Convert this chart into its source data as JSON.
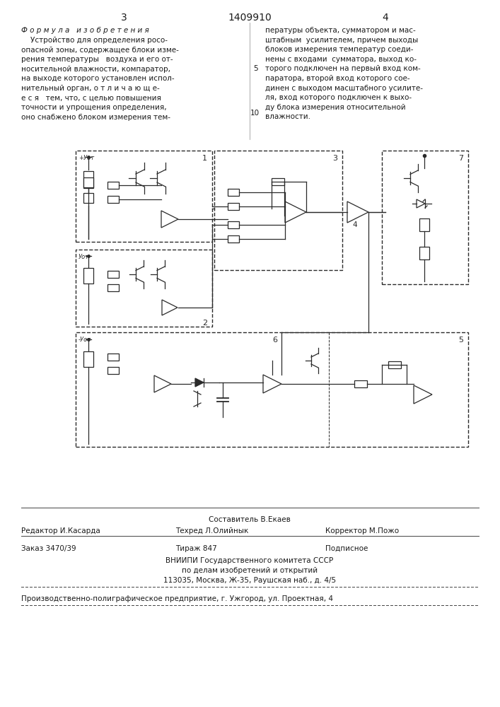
{
  "page_num_left": "3",
  "page_num_center": "1409910",
  "page_num_right": "4",
  "col1_header": "Ф о р м у л а   и з о б р е т е н и я",
  "col1_text": "    Устройство для определения росо-\nопасной зоны, содержащее блоки изме-\nрения температуры   воздуха и его от-\nносительной влажности, компаратор,\nна выходе которого установлен испол-\nнительный орган, о т л и ч а ю щ е-\nе с я   тем, что, с целью повышения\nточности и упрощения определения,\nоно снабжено блоком измерения тем-",
  "col2_line_num": "5",
  "col2_line_num2": "10",
  "col2_text": "пературы объекта, сумматором и мас-\nштабным  усилителем, причем выходы\nблоков измерения температур соеди-\nнены с входами  сумматора, выход ко-\nторого подключен на первый вход ком-\nпаратора, второй вход которого сое-\nдинен с выходом масштабного усилите-\nля, вход которого подключен к выхо-\nду блока измерения относительной\nвлажности.",
  "footer_composer": "Составитель В.Екаев",
  "footer_editor": "Редактор И.Касарда",
  "footer_techred": "Техред Л.Олийнык",
  "footer_corrector": "Корректор М.Пожо",
  "footer_order": "Заказ 3470/39",
  "footer_tirazh": "Тираж 847",
  "footer_podpisnoe": "Подписное",
  "footer_vniip1": "ВНИИПИ Государственного комитета СССР",
  "footer_vniip2": "по делам изобретений и открытий",
  "footer_vniip3": "113035, Москва, Ж-35, Раушская наб., д. 4/5",
  "footer_enterprise": "Производственно-полиграфическое предприятие, г. Ужгород, ул. Проектная, 4",
  "bg_color": "#ffffff",
  "text_color": "#1a1a1a"
}
